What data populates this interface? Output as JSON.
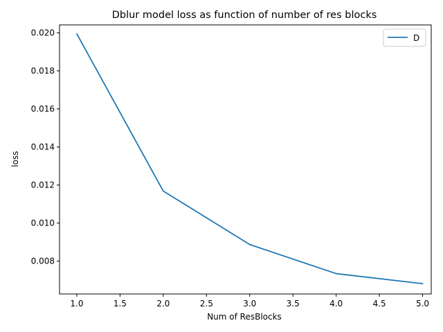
{
  "chart_data": {
    "type": "line",
    "title": "Dblur model loss as function of number of res blocks",
    "xlabel": "Num of ResBlocks",
    "ylabel": "loss",
    "x": [
      1.0,
      2.0,
      3.0,
      4.0,
      5.0
    ],
    "series": [
      {
        "name": "D",
        "values": [
          0.01995,
          0.01168,
          0.00887,
          0.00734,
          0.00681
        ],
        "color": "#1f77b4"
      }
    ],
    "xlim": [
      0.8,
      5.1
    ],
    "ylim": [
      0.00627,
      0.02042
    ],
    "x_ticks": [
      "1.0",
      "1.5",
      "2.0",
      "2.5",
      "3.0",
      "3.5",
      "4.0",
      "4.5",
      "5.0"
    ],
    "y_ticks": [
      "0.008",
      "0.010",
      "0.012",
      "0.014",
      "0.016",
      "0.018",
      "0.020"
    ],
    "grid": false,
    "legend": {
      "placement": "top-right",
      "entries": [
        "D"
      ]
    }
  }
}
